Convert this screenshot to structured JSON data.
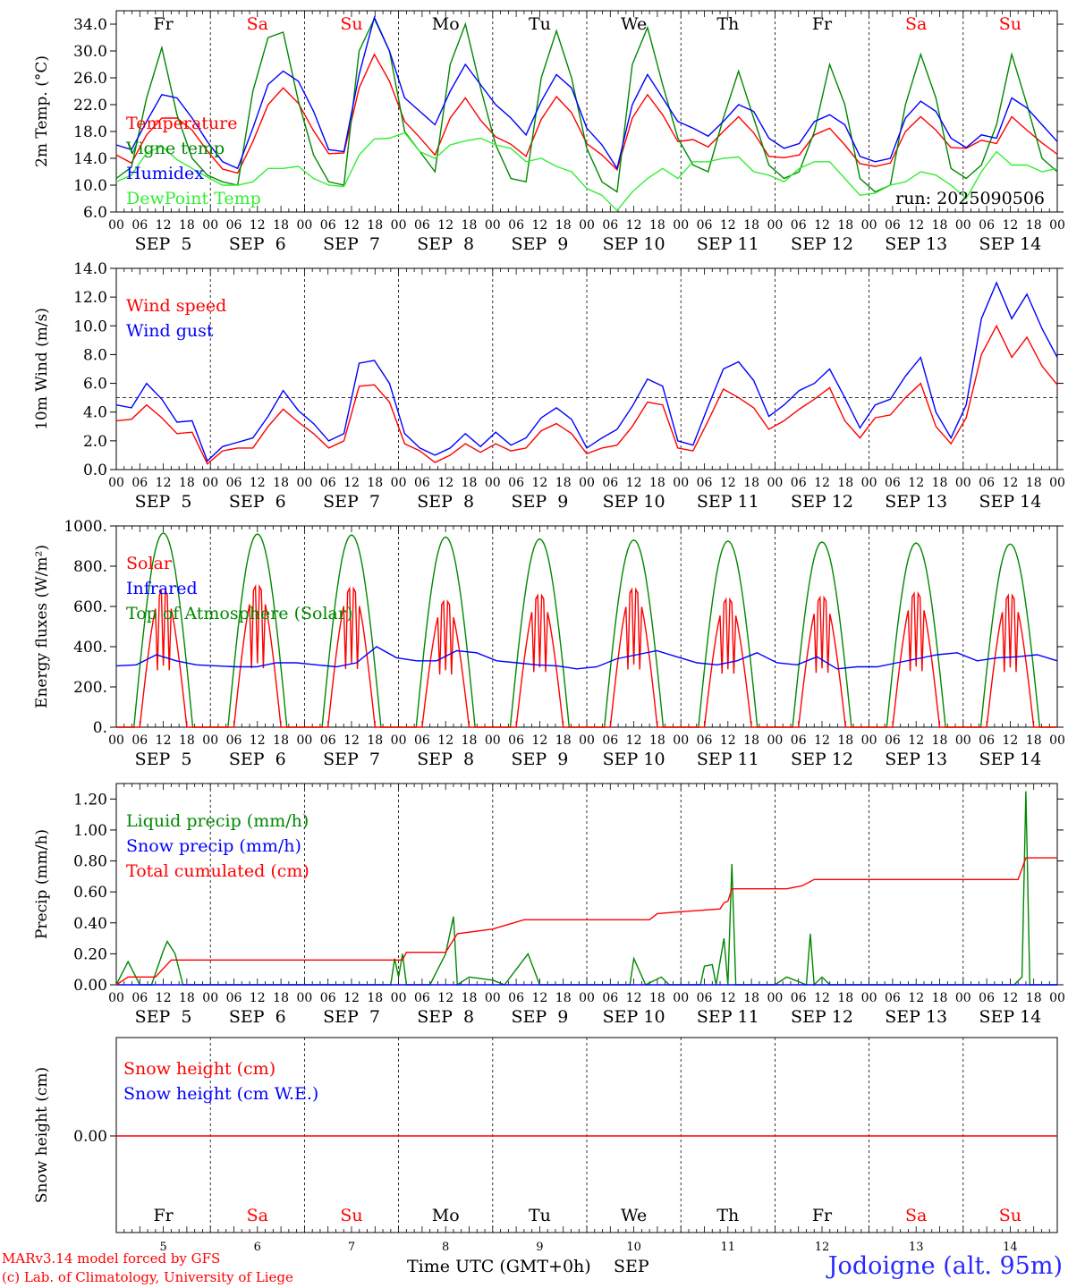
{
  "meteogram": {
    "run_label": "run: 2025090506",
    "credit_line1": "MARv3.14 model forced by GFS",
    "credit_line2": "(c) Lab. of Climatology, University of Liege",
    "xaxis_title": "Time UTC (GMT+0h)",
    "month": "SEP",
    "station": "Jodoigne (alt. 95m)"
  },
  "chart_data": [
    {
      "type": "line",
      "ylabel": "2m Temp. (°C)",
      "ylim": [
        6,
        36
      ],
      "yticks": [
        6,
        10,
        14,
        18,
        22,
        26,
        30,
        34
      ],
      "ytick_labels": [
        "6.0",
        "10.0",
        "14.0",
        "18.0",
        "22.0",
        "26.0",
        "30.0",
        "34.0"
      ],
      "grid": false,
      "legend_position": "left",
      "days": [
        "Fr",
        "Sa",
        "Su",
        "Mo",
        "Tu",
        "We",
        "Th",
        "Fr",
        "Sa",
        "Su"
      ],
      "weekend_days": [
        "Sa",
        "Su"
      ],
      "date_labels": [
        "SEP  5",
        "SEP  6",
        "SEP  7",
        "SEP  8",
        "SEP  9",
        "SEP 10",
        "SEP 11",
        "SEP 12",
        "SEP 13",
        "SEP 14"
      ],
      "hour_labels": [
        "00",
        "06",
        "12",
        "18"
      ],
      "x_hours_step": 6,
      "series": [
        {
          "name": "Temperature",
          "color": "#ff0000",
          "values": [
            14.5,
            13.3,
            17.5,
            20.0,
            20.0,
            18.2,
            15.1,
            12.4,
            11.8,
            16.5,
            22.0,
            24.5,
            22.2,
            18.1,
            14.7,
            14.8,
            24.5,
            29.5,
            25.5,
            19.5,
            17.1,
            14.5,
            20.0,
            23.0,
            19.7,
            17.2,
            16.1,
            14.3,
            19.8,
            23.2,
            20.8,
            16.2,
            14.5,
            12.3,
            20.0,
            23.5,
            20.5,
            16.5,
            16.8,
            15.7,
            18.0,
            20.2,
            17.8,
            14.3,
            14.1,
            14.5,
            17.5,
            18.5,
            16.0,
            13.2,
            12.8,
            13.3,
            18.0,
            20.2,
            18.2,
            15.6,
            15.5,
            16.7,
            16.2,
            20.2,
            18.2,
            16.3,
            14.6
          ]
        },
        {
          "name": "Vigne temp",
          "color": "#008800",
          "values": [
            11.0,
            12.7,
            23.0,
            30.5,
            20.5,
            14.0,
            11.5,
            10.5,
            10.0,
            24.0,
            32.0,
            32.8,
            22.5,
            14.5,
            10.5,
            10.0,
            30.0,
            34.8,
            30.0,
            18.0,
            15.0,
            12.0,
            28.0,
            34.0,
            24.5,
            16.0,
            11.0,
            10.5,
            26.0,
            33.0,
            26.0,
            15.5,
            10.5,
            9.0,
            28.0,
            33.5,
            25.0,
            17.0,
            13.0,
            12.0,
            20.0,
            27.0,
            20.0,
            13.0,
            11.0,
            12.0,
            18.0,
            28.0,
            22.0,
            11.0,
            9.0,
            10.0,
            22.0,
            29.5,
            23.0,
            12.5,
            11.0,
            13.0,
            19.0,
            29.5,
            22.0,
            14.0,
            12.0
          ]
        },
        {
          "name": "Humidex",
          "color": "#0000ff",
          "values": [
            16.0,
            15.3,
            19.5,
            23.5,
            23.0,
            20.0,
            16.5,
            13.5,
            12.5,
            18.5,
            25.0,
            27.0,
            25.5,
            21.0,
            15.3,
            15.0,
            26.5,
            35.0,
            30.0,
            23.0,
            21.0,
            19.0,
            24.0,
            28.0,
            25.0,
            22.0,
            20.0,
            17.5,
            22.5,
            26.5,
            24.5,
            18.5,
            16.0,
            12.5,
            22.0,
            26.5,
            23.0,
            19.5,
            18.5,
            17.3,
            19.5,
            22.0,
            21.0,
            17.0,
            15.5,
            16.2,
            19.5,
            20.5,
            19.0,
            14.3,
            13.5,
            14.0,
            20.0,
            22.5,
            21.0,
            17.0,
            15.6,
            17.5,
            17.0,
            23.0,
            21.5,
            19.0,
            16.5
          ]
        },
        {
          "name": "DewPoint Temp",
          "color": "#33ee33",
          "values": [
            10.5,
            11.5,
            14.8,
            15.8,
            13.8,
            12.5,
            11.2,
            10.0,
            10.0,
            10.5,
            12.5,
            12.5,
            12.8,
            11.0,
            10.0,
            9.8,
            14.5,
            16.9,
            17.0,
            17.8,
            15.0,
            14.0,
            16.0,
            16.6,
            17.0,
            16.0,
            15.5,
            13.5,
            14.0,
            12.8,
            12.0,
            9.5,
            8.5,
            6.2,
            9.0,
            11.0,
            12.5,
            11.0,
            13.5,
            13.5,
            14.0,
            14.2,
            12.0,
            11.5,
            10.5,
            12.5,
            13.5,
            13.5,
            11.0,
            8.5,
            8.8,
            10.0,
            10.5,
            12.0,
            11.5,
            10.0,
            8.0,
            12.0,
            15.0,
            13.0,
            13.0,
            12.0,
            12.5
          ]
        }
      ]
    },
    {
      "type": "line",
      "ylabel": "10m Wind (m/s)",
      "ylim": [
        0,
        14
      ],
      "yticks": [
        0,
        2,
        4,
        6,
        8,
        10,
        12,
        14
      ],
      "ytick_labels": [
        "0.0",
        "2.0",
        "4.0",
        "6.0",
        "8.0",
        "10.0",
        "12.0",
        "14.0"
      ],
      "reference_line": 5,
      "grid": false,
      "legend_position": "left",
      "date_labels": [
        "SEP  5",
        "SEP  6",
        "SEP  7",
        "SEP  8",
        "SEP  9",
        "SEP 10",
        "SEP 11",
        "SEP 12",
        "SEP 13",
        "SEP 14"
      ],
      "hour_labels": [
        "00",
        "06",
        "12",
        "18"
      ],
      "series": [
        {
          "name": "Wind speed",
          "color": "#ff0000",
          "values": [
            3.4,
            3.5,
            4.5,
            3.6,
            2.5,
            2.6,
            0.4,
            1.3,
            1.5,
            1.5,
            3.0,
            4.2,
            3.3,
            2.5,
            1.5,
            2.0,
            5.8,
            5.9,
            4.7,
            1.8,
            1.3,
            0.5,
            1.0,
            1.8,
            1.2,
            1.8,
            1.3,
            1.5,
            2.7,
            3.2,
            2.5,
            1.1,
            1.5,
            1.7,
            3.0,
            4.7,
            4.5,
            1.5,
            1.3,
            3.4,
            5.6,
            5.0,
            4.3,
            2.8,
            3.4,
            4.2,
            4.9,
            5.7,
            3.4,
            2.2,
            3.6,
            3.8,
            5.0,
            6.0,
            3.0,
            1.8,
            3.6,
            8.0,
            10.0,
            7.8,
            9.2,
            7.2,
            5.9
          ]
        },
        {
          "name": "Wind gust",
          "color": "#0000ff",
          "values": [
            4.5,
            4.3,
            6.0,
            4.9,
            3.3,
            3.4,
            0.6,
            1.6,
            1.9,
            2.2,
            3.7,
            5.5,
            4.1,
            3.2,
            2.0,
            2.5,
            7.4,
            7.6,
            6.0,
            2.5,
            1.5,
            1.0,
            1.5,
            2.5,
            1.6,
            2.6,
            1.7,
            2.2,
            3.6,
            4.3,
            3.5,
            1.5,
            2.2,
            2.8,
            4.4,
            6.3,
            5.8,
            2.0,
            1.7,
            4.4,
            7.0,
            7.5,
            6.2,
            3.7,
            4.5,
            5.5,
            6.0,
            7.0,
            5.0,
            2.9,
            4.5,
            4.9,
            6.5,
            7.8,
            4.0,
            2.2,
            4.5,
            10.5,
            13.0,
            10.5,
            12.2,
            9.8,
            7.8
          ]
        }
      ]
    },
    {
      "type": "line",
      "ylabel": "Energy fluxes (W/m²)",
      "ylim": [
        0,
        1000
      ],
      "yticks": [
        0,
        200,
        400,
        600,
        800,
        1000
      ],
      "ytick_labels": [
        "0.",
        "200.",
        "400.",
        "600.",
        "800.",
        "1000."
      ],
      "grid": false,
      "legend_position": "left",
      "date_labels": [
        "SEP  5",
        "SEP  6",
        "SEP  7",
        "SEP  8",
        "SEP  9",
        "SEP 10",
        "SEP 11",
        "SEP 12",
        "SEP 13",
        "SEP 14"
      ],
      "hour_labels": [
        "00",
        "06",
        "12",
        "18"
      ],
      "series": [
        {
          "name": "Solar",
          "color": "#ff0000",
          "peaks": [
            680,
            705,
            695,
            630,
            660,
            690,
            640,
            650,
            670,
            660
          ]
        },
        {
          "name": "Infrared",
          "color": "#0000ff",
          "values": [
            305,
            310,
            360,
            330,
            310,
            305,
            300,
            300,
            320,
            320,
            310,
            300,
            320,
            400,
            345,
            330,
            330,
            380,
            370,
            330,
            320,
            310,
            305,
            290,
            300,
            340,
            360,
            380,
            350,
            320,
            310,
            330,
            370,
            320,
            310,
            350,
            290,
            300,
            300,
            320,
            340,
            360,
            370,
            330,
            345,
            350,
            360,
            330
          ]
        },
        {
          "name": "Top of Atmosphere (Solar)",
          "color": "#008800",
          "peaks": [
            965,
            960,
            955,
            945,
            935,
            930,
            925,
            920,
            915,
            910
          ]
        }
      ]
    },
    {
      "type": "line",
      "ylabel": "Precip (mm/h)",
      "ylim": [
        0,
        1.3
      ],
      "yticks": [
        0,
        0.2,
        0.4,
        0.6,
        0.8,
        1.0,
        1.2
      ],
      "ytick_labels": [
        "0.00",
        "0.20",
        "0.40",
        "0.60",
        "0.80",
        "1.00",
        "1.20"
      ],
      "grid": false,
      "legend_position": "left",
      "date_labels": [
        "SEP  5",
        "SEP  6",
        "SEP  7",
        "SEP  8",
        "SEP  9",
        "SEP 10",
        "SEP 11",
        "SEP 12",
        "SEP 13",
        "SEP 14"
      ],
      "hour_labels": [
        "00",
        "06",
        "12",
        "18"
      ],
      "series": [
        {
          "name": "Liquid precip (mm/h)",
          "color": "#008800",
          "points": [
            [
              0,
              0
            ],
            [
              3,
              0.15
            ],
            [
              6,
              0
            ],
            [
              9,
              0
            ],
            [
              12,
              0.22
            ],
            [
              13,
              0.28
            ],
            [
              15,
              0.2
            ],
            [
              17,
              0
            ],
            [
              70,
              0
            ],
            [
              71,
              0.17
            ],
            [
              72,
              0.05
            ],
            [
              73,
              0.2
            ],
            [
              74,
              0
            ],
            [
              80,
              0
            ],
            [
              84,
              0.2
            ],
            [
              86,
              0.44
            ],
            [
              87,
              0
            ],
            [
              90,
              0.05
            ],
            [
              96,
              0.03
            ],
            [
              99,
              0
            ],
            [
              105,
              0.2
            ],
            [
              108,
              0
            ],
            [
              131,
              0
            ],
            [
              132,
              0.17
            ],
            [
              135,
              0
            ],
            [
              139,
              0.05
            ],
            [
              141,
              0
            ],
            [
              149,
              0
            ],
            [
              150,
              0.12
            ],
            [
              152,
              0.13
            ],
            [
              153,
              0
            ],
            [
              155,
              0.3
            ],
            [
              156,
              0
            ],
            [
              157,
              0.78
            ],
            [
              158,
              0
            ],
            [
              168,
              0
            ],
            [
              171,
              0.05
            ],
            [
              176,
              0
            ],
            [
              177,
              0.33
            ],
            [
              178,
              0
            ],
            [
              180,
              0.05
            ],
            [
              182,
              0
            ],
            [
              229,
              0
            ],
            [
              231,
              0.05
            ],
            [
              232,
              1.25
            ],
            [
              233,
              0
            ],
            [
              240,
              0
            ]
          ]
        },
        {
          "name": "Snow precip (mm/h)",
          "color": "#0000ff",
          "values": [
            0
          ]
        },
        {
          "name": "Total cumulated (cm)",
          "color": "#ff0000",
          "points": [
            [
              0,
              0
            ],
            [
              3,
              0.05
            ],
            [
              10,
              0.05
            ],
            [
              14,
              0.16
            ],
            [
              73,
              0.16
            ],
            [
              74,
              0.21
            ],
            [
              84,
              0.21
            ],
            [
              87,
              0.33
            ],
            [
              96,
              0.36
            ],
            [
              104,
              0.42
            ],
            [
              136,
              0.42
            ],
            [
              138,
              0.46
            ],
            [
              143,
              0.47
            ],
            [
              154,
              0.49
            ],
            [
              155,
              0.53
            ],
            [
              156,
              0.54
            ],
            [
              157,
              0.62
            ],
            [
              171,
              0.62
            ],
            [
              175,
              0.64
            ],
            [
              178,
              0.68
            ],
            [
              230,
              0.68
            ],
            [
              232,
              0.82
            ],
            [
              240,
              0.82
            ]
          ]
        }
      ]
    },
    {
      "type": "line",
      "ylabel": "Snow height (cm)",
      "ytick_labels": [
        "0.00"
      ],
      "grid": false,
      "legend_position": "left",
      "days": [
        "Fr",
        "Sa",
        "Su",
        "Mo",
        "Tu",
        "We",
        "Th",
        "Fr",
        "Sa",
        "Su"
      ],
      "day_numbers": [
        "5",
        "6",
        "7",
        "8",
        "9",
        "10",
        "11",
        "12",
        "13",
        "14"
      ],
      "series": [
        {
          "name": "Snow height (cm)",
          "color": "#ff0000",
          "values": [
            0,
            0
          ]
        },
        {
          "name": "Snow height (cm W.E.)",
          "color": "#0000ff",
          "values": [
            0,
            0
          ]
        }
      ]
    }
  ]
}
